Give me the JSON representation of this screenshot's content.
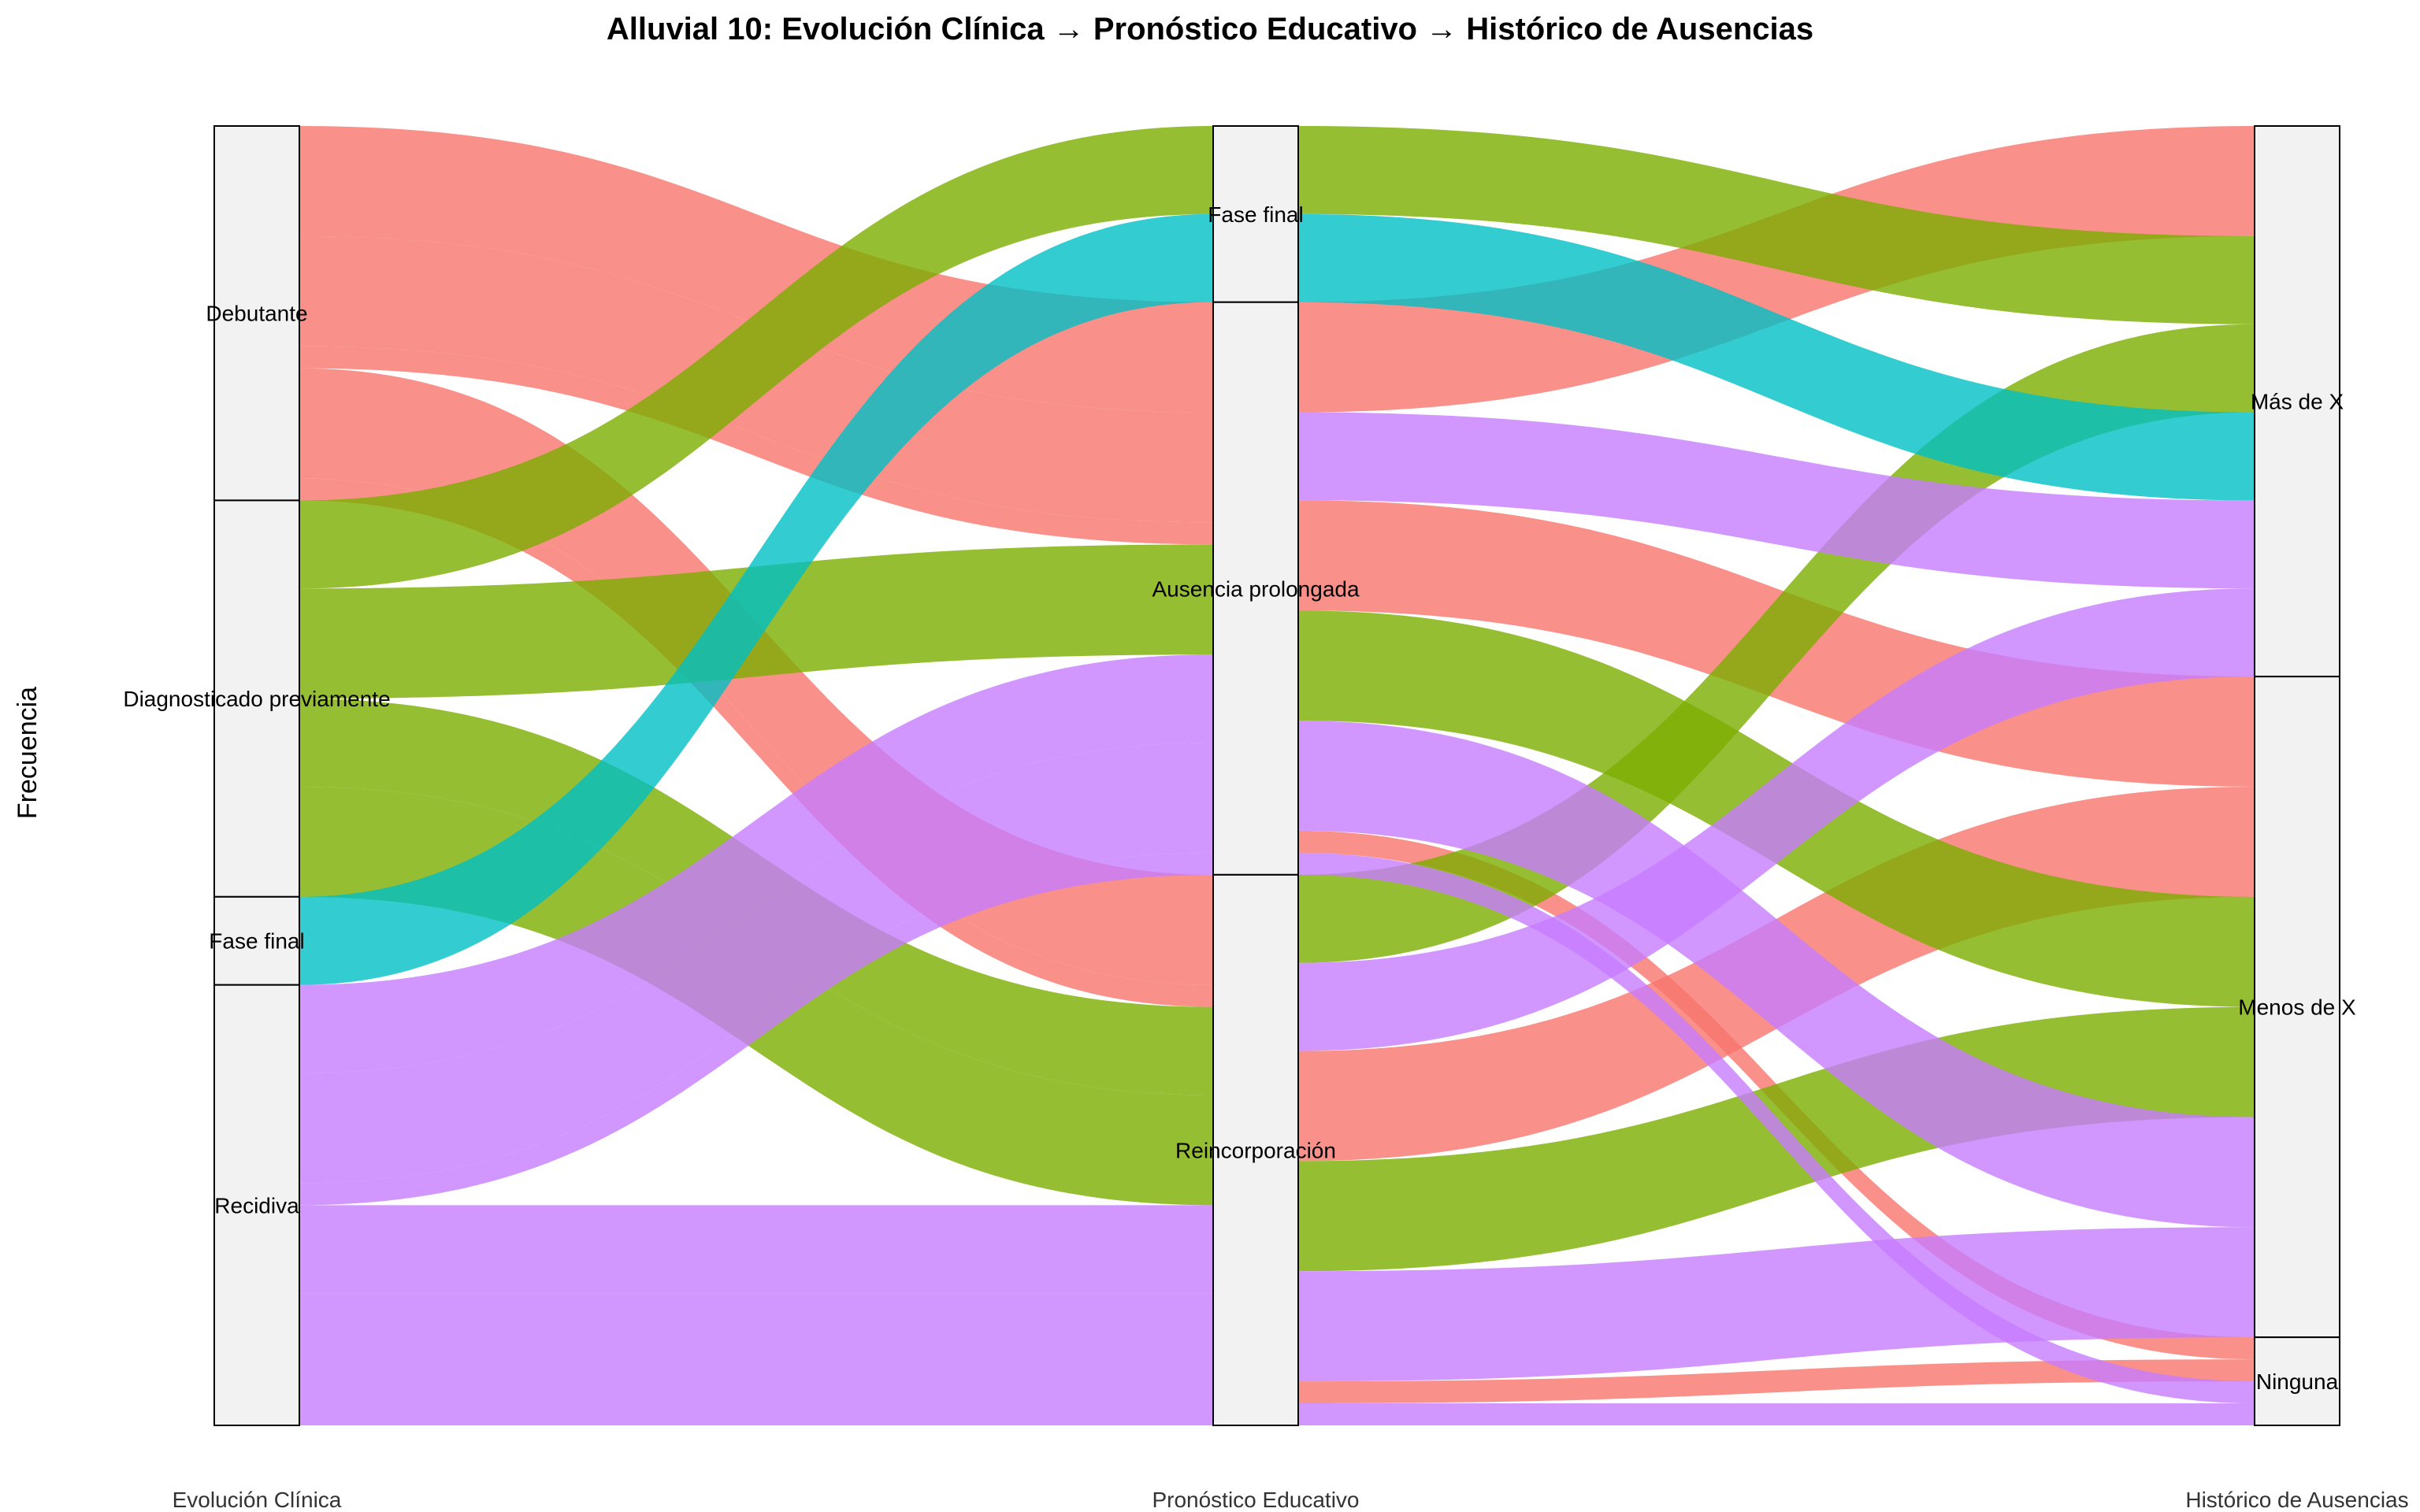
{
  "chart_data": {
    "type": "alluvial",
    "title": "Alluvial 10: Evolución Clínica → Pronóstico Educativo → Histórico de Ausencias",
    "ylabel": "Frecuencia",
    "axes": [
      "Evolución Clínica",
      "Pronóstico Educativo",
      "Histórico de Ausencias"
    ],
    "strata": [
      [
        "Debutante",
        "Diagnosticado previamente",
        "Fase final",
        "Recidiva"
      ],
      [
        "Fase final",
        "Ausencia prolongada",
        "Reincorporación"
      ],
      [
        "Más de X",
        "Menos de X",
        "Ninguna"
      ]
    ],
    "fill_colors": {
      "Debutante": "#F8766D",
      "Diagnosticado previamente": "#7CAE00",
      "Fase final": "#00BFC4",
      "Recidiva": "#C77CFF"
    },
    "fill_opacity": 0.8,
    "flows": [
      {
        "evolucion": "Debutante",
        "pronostico": "Ausencia prolongada",
        "historico": "Más de X",
        "freq": 5
      },
      {
        "evolucion": "Debutante",
        "pronostico": "Ausencia prolongada",
        "historico": "Menos de X",
        "freq": 5
      },
      {
        "evolucion": "Debutante",
        "pronostico": "Ausencia prolongada",
        "historico": "Ninguna",
        "freq": 1
      },
      {
        "evolucion": "Debutante",
        "pronostico": "Reincorporación",
        "historico": "Menos de X",
        "freq": 5
      },
      {
        "evolucion": "Debutante",
        "pronostico": "Reincorporación",
        "historico": "Ninguna",
        "freq": 1
      },
      {
        "evolucion": "Diagnosticado previamente",
        "pronostico": "Fase final",
        "historico": "Más de X",
        "freq": 4
      },
      {
        "evolucion": "Diagnosticado previamente",
        "pronostico": "Ausencia prolongada",
        "historico": "Menos de X",
        "freq": 5
      },
      {
        "evolucion": "Diagnosticado previamente",
        "pronostico": "Reincorporación",
        "historico": "Más de X",
        "freq": 4
      },
      {
        "evolucion": "Diagnosticado previamente",
        "pronostico": "Reincorporación",
        "historico": "Menos de X",
        "freq": 5
      },
      {
        "evolucion": "Fase final",
        "pronostico": "Fase final",
        "historico": "Más de X",
        "freq": 4
      },
      {
        "evolucion": "Recidiva",
        "pronostico": "Ausencia prolongada",
        "historico": "Más de X",
        "freq": 4
      },
      {
        "evolucion": "Recidiva",
        "pronostico": "Ausencia prolongada",
        "historico": "Menos de X",
        "freq": 5
      },
      {
        "evolucion": "Recidiva",
        "pronostico": "Ausencia prolongada",
        "historico": "Ninguna",
        "freq": 1
      },
      {
        "evolucion": "Recidiva",
        "pronostico": "Reincorporación",
        "historico": "Más de X",
        "freq": 4
      },
      {
        "evolucion": "Recidiva",
        "pronostico": "Reincorporación",
        "historico": "Menos de X",
        "freq": 5
      },
      {
        "evolucion": "Recidiva",
        "pronostico": "Reincorporación",
        "historico": "Ninguna",
        "freq": 1
      }
    ]
  }
}
